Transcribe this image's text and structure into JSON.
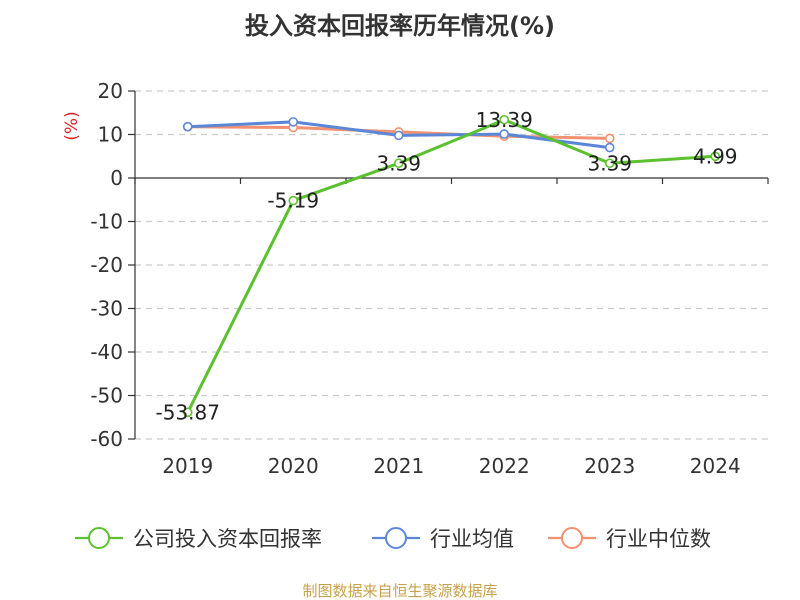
{
  "chart_data": {
    "type": "line",
    "title": "投入资本回报率历年情况(%)",
    "ylabel": "(%)",
    "xlabel": "",
    "categories": [
      "2019",
      "2020",
      "2021",
      "2022",
      "2023",
      "2024"
    ],
    "ylim": [
      -60,
      20
    ],
    "yticks": [
      20,
      10,
      0,
      -10,
      -20,
      -30,
      -40,
      -50,
      -60
    ],
    "grid": true,
    "legend_position": "bottom",
    "series": [
      {
        "name": "公司投入资本回报率",
        "color": "#5cc12f",
        "values": [
          -53.87,
          -5.19,
          3.39,
          13.39,
          3.39,
          4.99
        ],
        "labels": [
          "-53.87",
          "-5.19",
          "3.39",
          "13.39",
          "3.39",
          "4.99"
        ]
      },
      {
        "name": "行业均值",
        "color": "#5b87d8",
        "values": [
          11.8,
          12.9,
          9.8,
          10.1,
          7.0,
          null
        ]
      },
      {
        "name": "行业中位数",
        "color": "#f39070",
        "values": [
          11.8,
          11.6,
          10.6,
          9.6,
          9.1,
          null
        ]
      }
    ]
  },
  "source": {
    "text": "制图数据来自恒生聚源数据库",
    "color": "#c8a24a"
  },
  "ylabel_color": "#dd2222"
}
